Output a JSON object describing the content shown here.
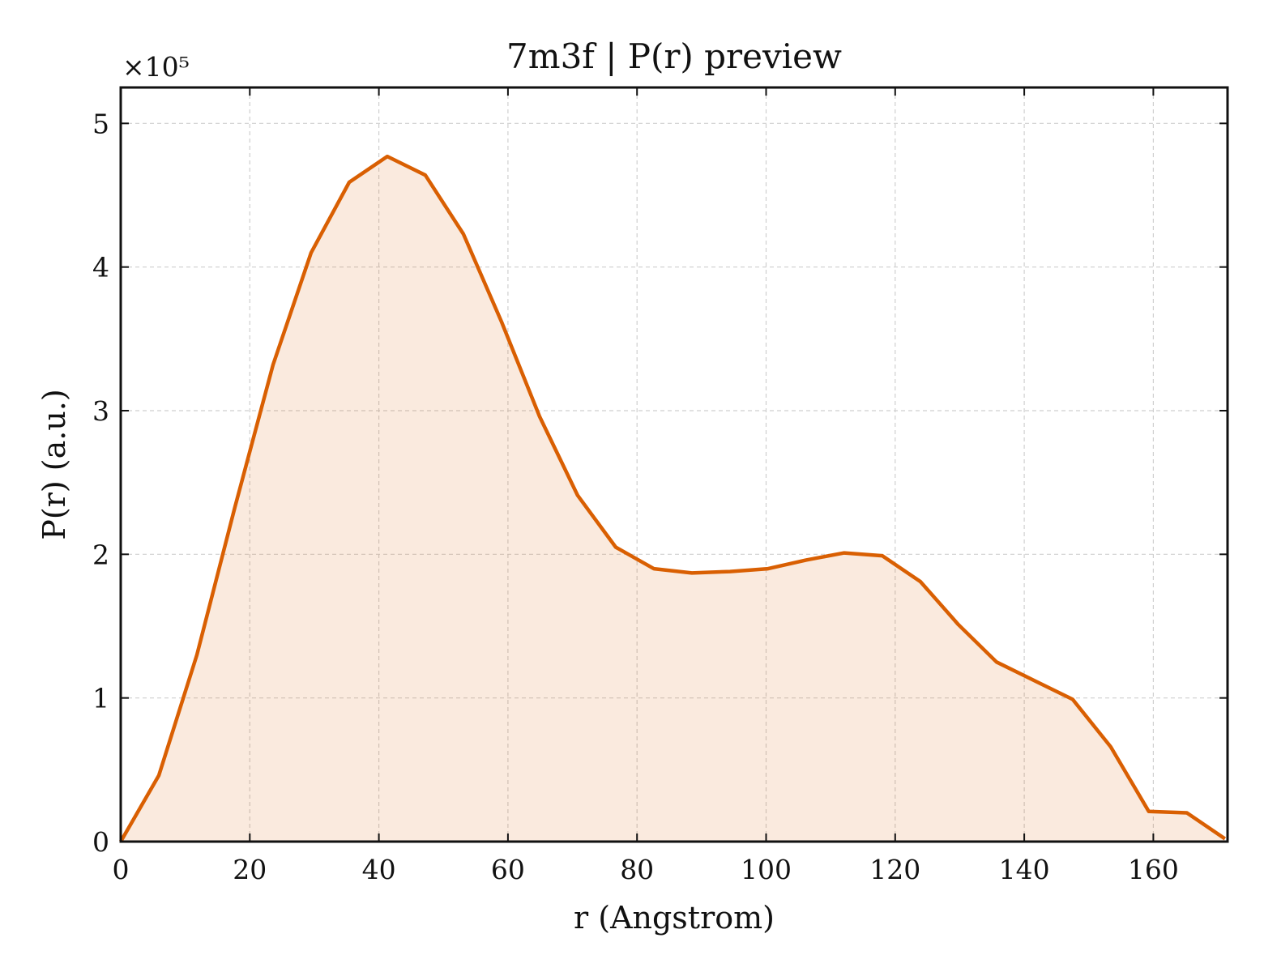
{
  "chart_data": {
    "type": "area",
    "title": "7m3f | P(r) preview",
    "xlabel": "r (Angstrom)",
    "ylabel": "P(r) (a.u.)",
    "y_multiplier_label": "×10⁵",
    "xlim": [
      0,
      171.5
    ],
    "ylim": [
      0,
      5.25
    ],
    "x_ticks": [
      0,
      20,
      40,
      60,
      80,
      100,
      120,
      140,
      160
    ],
    "y_ticks": [
      0,
      1,
      2,
      3,
      4,
      5
    ],
    "grid": true,
    "legend": "none",
    "series": [
      {
        "color": "#d95f02",
        "fill_color": "#d95f02",
        "fill_opacity": 0.13,
        "x": [
          0,
          5.9,
          11.8,
          17.7,
          23.6,
          29.5,
          35.4,
          41.3,
          47.2,
          53.1,
          59.0,
          64.9,
          70.8,
          76.7,
          82.6,
          88.5,
          94.4,
          100.3,
          106.2,
          112.1,
          118.0,
          123.9,
          129.8,
          135.7,
          141.6,
          147.5,
          153.4,
          159.3,
          165.2,
          171.1
        ],
        "y": [
          0.0,
          0.46,
          1.3,
          2.33,
          3.32,
          4.1,
          4.59,
          4.77,
          4.64,
          4.23,
          3.62,
          2.96,
          2.41,
          2.05,
          1.9,
          1.87,
          1.88,
          1.9,
          1.96,
          2.01,
          1.99,
          1.81,
          1.51,
          1.25,
          1.12,
          0.99,
          0.66,
          0.21,
          0.2,
          0.02
        ]
      }
    ]
  }
}
